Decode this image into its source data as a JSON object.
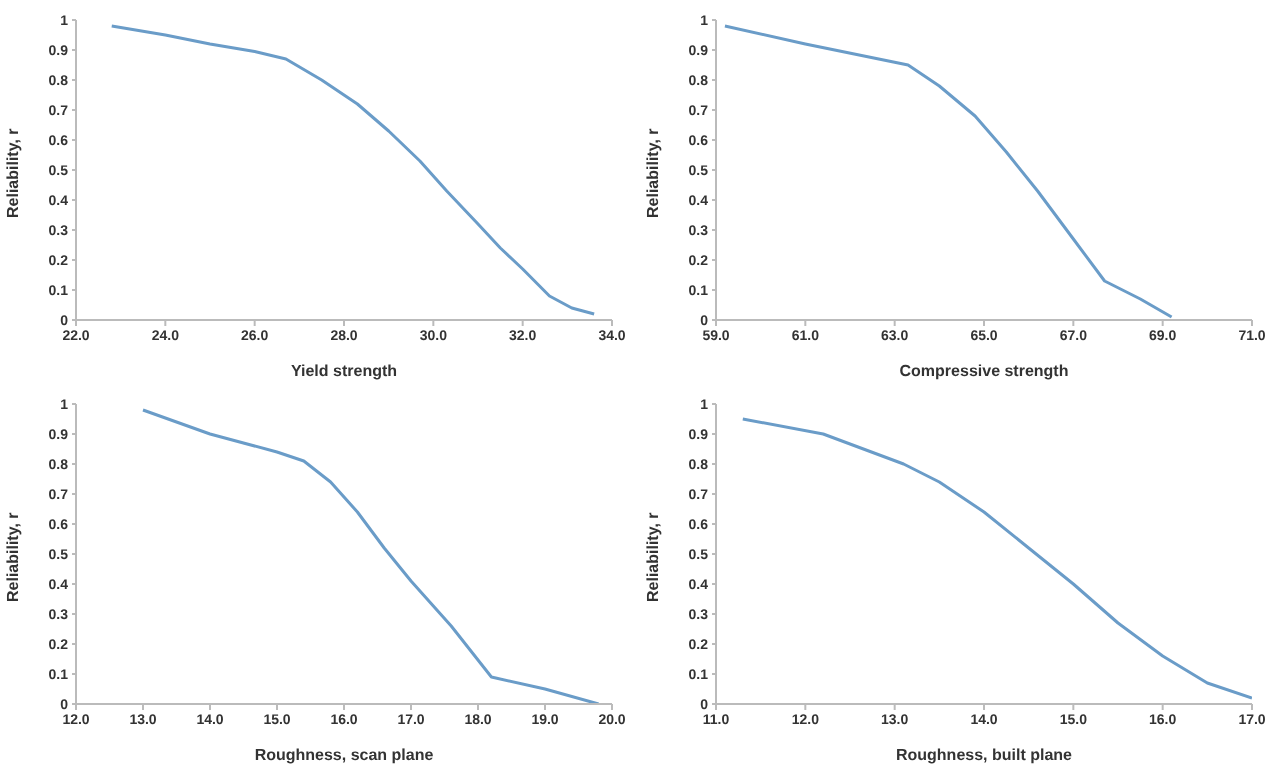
{
  "chart_data": [
    {
      "type": "line",
      "xlabel": "Yield strength",
      "ylabel": "Reliability, r",
      "color": "#6a9cc8",
      "marker": "none",
      "line_style": "solid",
      "grid": false,
      "legend": false,
      "x": [
        22.8,
        24,
        25,
        26,
        26.7,
        27.5,
        28.3,
        29,
        29.7,
        30.3,
        31,
        31.5,
        32,
        32.6,
        33.1,
        33.6
      ],
      "values": [
        0.98,
        0.95,
        0.92,
        0.895,
        0.87,
        0.8,
        0.72,
        0.63,
        0.53,
        0.43,
        0.32,
        0.24,
        0.17,
        0.08,
        0.04,
        0.02
      ],
      "xlim": [
        22,
        34
      ],
      "xticks": [
        {
          "value": 22,
          "label": "22.0"
        },
        {
          "value": 24,
          "label": "24.0"
        },
        {
          "value": 26,
          "label": "26.0"
        },
        {
          "value": 28,
          "label": "28.0"
        },
        {
          "value": 30,
          "label": "30.0"
        },
        {
          "value": 32,
          "label": "32.0"
        },
        {
          "value": 34,
          "label": "34.0"
        }
      ],
      "ylim": [
        0,
        1
      ],
      "yticks": [
        0,
        0.1,
        0.2,
        0.3,
        0.4,
        0.5,
        0.6,
        0.7,
        0.8,
        0.9,
        1
      ]
    },
    {
      "type": "line",
      "xlabel": "Compressive strength",
      "ylabel": "Reliability, r",
      "color": "#6a9cc8",
      "marker": "none",
      "line_style": "solid",
      "grid": false,
      "legend": false,
      "x": [
        59.2,
        61,
        63.3,
        64,
        64.8,
        65.5,
        66.2,
        67,
        67.7,
        68.5,
        69.2
      ],
      "values": [
        0.98,
        0.92,
        0.85,
        0.78,
        0.68,
        0.56,
        0.43,
        0.27,
        0.13,
        0.07,
        0.01
      ],
      "xlim": [
        59,
        71
      ],
      "xticks": [
        {
          "value": 59,
          "label": "59.0"
        },
        {
          "value": 61,
          "label": "61.0"
        },
        {
          "value": 63,
          "label": "63.0"
        },
        {
          "value": 65,
          "label": "65.0"
        },
        {
          "value": 67,
          "label": "67.0"
        },
        {
          "value": 69,
          "label": "69.0"
        },
        {
          "value": 71,
          "label": "71.0"
        }
      ],
      "ylim": [
        0,
        1
      ],
      "yticks": [
        0,
        0.1,
        0.2,
        0.3,
        0.4,
        0.5,
        0.6,
        0.7,
        0.8,
        0.9,
        1
      ]
    },
    {
      "type": "line",
      "xlabel": "Roughness, scan plane",
      "ylabel": "Reliability, r",
      "color": "#6a9cc8",
      "marker": "none",
      "line_style": "solid",
      "grid": false,
      "legend": false,
      "x": [
        13,
        14,
        15,
        15.4,
        15.8,
        16.2,
        16.6,
        17,
        17.6,
        18.2,
        19,
        19.8
      ],
      "values": [
        0.98,
        0.9,
        0.84,
        0.81,
        0.74,
        0.64,
        0.52,
        0.41,
        0.26,
        0.09,
        0.05,
        0
      ],
      "xlim": [
        12,
        20
      ],
      "xticks": [
        {
          "value": 12,
          "label": "12.0"
        },
        {
          "value": 13,
          "label": "13.0"
        },
        {
          "value": 14,
          "label": "14.0"
        },
        {
          "value": 15,
          "label": "15.0"
        },
        {
          "value": 16,
          "label": "16.0"
        },
        {
          "value": 17,
          "label": "17.0"
        },
        {
          "value": 18,
          "label": "18.0"
        },
        {
          "value": 19,
          "label": "19.0"
        },
        {
          "value": 20,
          "label": "20.0"
        }
      ],
      "ylim": [
        0,
        1
      ],
      "yticks": [
        0,
        0.1,
        0.2,
        0.3,
        0.4,
        0.5,
        0.6,
        0.7,
        0.8,
        0.9,
        1
      ]
    },
    {
      "type": "line",
      "xlabel": "Roughness, built plane",
      "ylabel": "Reliability, r",
      "color": "#6a9cc8",
      "marker": "none",
      "line_style": "solid",
      "grid": false,
      "legend": false,
      "x": [
        11.3,
        12.2,
        13.1,
        13.5,
        14,
        14.5,
        15,
        15.5,
        16,
        16.5,
        17
      ],
      "values": [
        0.95,
        0.9,
        0.8,
        0.74,
        0.64,
        0.52,
        0.4,
        0.27,
        0.16,
        0.07,
        0.02
      ],
      "xlim": [
        11,
        17
      ],
      "xticks": [
        {
          "value": 11,
          "label": "11.0"
        },
        {
          "value": 12,
          "label": "12.0"
        },
        {
          "value": 13,
          "label": "13.0"
        },
        {
          "value": 14,
          "label": "14.0"
        },
        {
          "value": 15,
          "label": "15.0"
        },
        {
          "value": 16,
          "label": "16.0"
        },
        {
          "value": 17,
          "label": "17.0"
        }
      ],
      "ylim": [
        0,
        1
      ],
      "yticks": [
        0,
        0.1,
        0.2,
        0.3,
        0.4,
        0.5,
        0.6,
        0.7,
        0.8,
        0.9,
        1
      ]
    }
  ]
}
